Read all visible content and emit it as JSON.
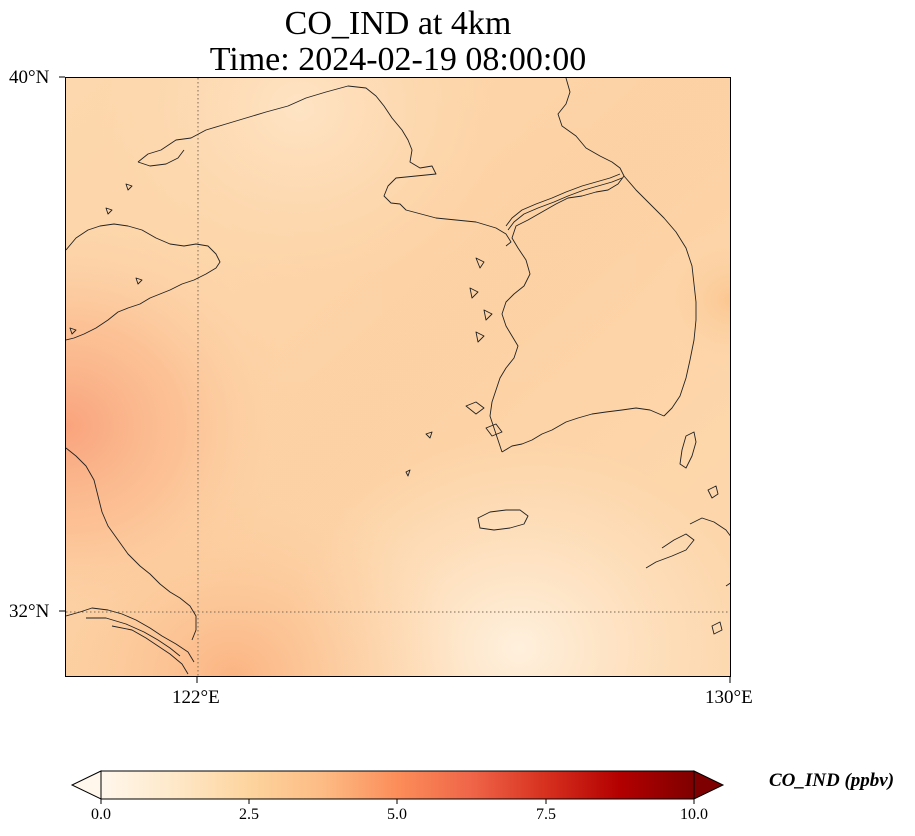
{
  "title": {
    "line1": "CO_IND at 4km",
    "line2": "Time: 2024-02-19 08:00:00"
  },
  "map": {
    "lat_ticks": [
      "40°N",
      "32°N"
    ],
    "lon_ticks": [
      "122°E",
      "130°E"
    ],
    "gridlines": "dotted",
    "features": [
      "coastline-china",
      "coastline-korea",
      "jeju-island",
      "yellow-sea",
      "bohai-sea"
    ]
  },
  "colorbar": {
    "label": "CO_IND (ppbv)",
    "ticks": [
      "0.0",
      "2.5",
      "5.0",
      "7.5",
      "10.0"
    ],
    "min": 0,
    "max": 10,
    "extend": "both",
    "colormap": "OrRd",
    "colors": [
      "#fff7ec",
      "#fee8c8",
      "#fdd49e",
      "#fdbb84",
      "#fc8d59",
      "#ef6548",
      "#d7301f",
      "#b30000",
      "#7f0000"
    ]
  }
}
